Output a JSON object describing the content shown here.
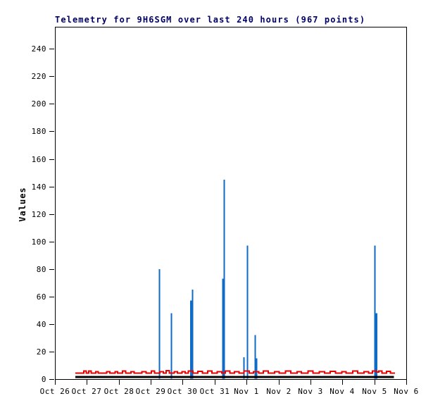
{
  "title": "Telemetry for 9H6SGM over last 240 hours (967 points)",
  "colors": {
    "background": "#ffffff",
    "title_text": "#000066",
    "frame": "#000000",
    "spike_blue": "#0f6bc5",
    "baseline_red": "#e60000",
    "baseline_black": "#000000"
  },
  "chart_data": {
    "type": "line",
    "title": "Telemetry for 9H6SGM over last 240 hours (967 points)",
    "xlabel": "",
    "ylabel": "Values",
    "grid": false,
    "legend": "none",
    "x_unit": "days since Oct 26",
    "x_axis": {
      "range": [
        0,
        11
      ],
      "tick_labels": [
        "Oct 26",
        "Oct 27",
        "Oct 28",
        "Oct 29",
        "Oct 30",
        "Oct 31",
        "Nov 1",
        "Nov 2",
        "Nov 3",
        "Nov 4",
        "Nov 5",
        "Nov 6"
      ],
      "tick_days": [
        0,
        1,
        2,
        3,
        4,
        5,
        6,
        7,
        8,
        9,
        10,
        11
      ]
    },
    "y_axis": {
      "ticks": [
        0,
        20,
        40,
        60,
        80,
        100,
        120,
        140,
        160,
        180,
        200,
        220,
        240
      ],
      "max": 256
    },
    "series": [
      {
        "name": "blue-spikes",
        "type": "impulse",
        "color": "#0f6bc5",
        "points_day_value_width": [
          [
            3.27,
            80,
            2
          ],
          [
            3.65,
            48,
            2
          ],
          [
            4.27,
            57,
            3
          ],
          [
            4.31,
            65,
            2
          ],
          [
            5.27,
            73,
            3
          ],
          [
            5.3,
            145,
            2
          ],
          [
            5.92,
            16,
            2
          ],
          [
            6.03,
            97,
            2
          ],
          [
            6.27,
            32,
            2
          ],
          [
            6.3,
            15,
            3
          ],
          [
            10.02,
            97,
            2
          ],
          [
            10.05,
            48,
            4
          ]
        ]
      },
      {
        "name": "red-baseline",
        "type": "step",
        "color": "#e60000",
        "stroke_width": 2,
        "points_day_value": [
          [
            0.64,
            4.4
          ],
          [
            0.8,
            4.4
          ],
          [
            0.9,
            6.0
          ],
          [
            0.98,
            4.4
          ],
          [
            1.06,
            6.0
          ],
          [
            1.14,
            4.4
          ],
          [
            1.28,
            5.4
          ],
          [
            1.36,
            4.4
          ],
          [
            1.52,
            4.4
          ],
          [
            1.62,
            5.4
          ],
          [
            1.72,
            4.4
          ],
          [
            1.88,
            5.4
          ],
          [
            1.96,
            4.4
          ],
          [
            2.12,
            6.0
          ],
          [
            2.22,
            4.4
          ],
          [
            2.38,
            5.4
          ],
          [
            2.48,
            4.4
          ],
          [
            2.64,
            4.4
          ],
          [
            2.72,
            5.4
          ],
          [
            2.86,
            4.4
          ],
          [
            3.02,
            5.8
          ],
          [
            3.12,
            4.4
          ],
          [
            3.28,
            5.4
          ],
          [
            3.4,
            4.4
          ],
          [
            3.48,
            6.2
          ],
          [
            3.58,
            4.4
          ],
          [
            3.74,
            5.4
          ],
          [
            3.84,
            4.4
          ],
          [
            3.98,
            5.4
          ],
          [
            4.08,
            4.4
          ],
          [
            4.18,
            6.0
          ],
          [
            4.32,
            4.4
          ],
          [
            4.48,
            5.6
          ],
          [
            4.62,
            4.4
          ],
          [
            4.78,
            6.0
          ],
          [
            4.92,
            4.4
          ],
          [
            5.08,
            5.4
          ],
          [
            5.22,
            4.4
          ],
          [
            5.34,
            6.0
          ],
          [
            5.48,
            4.4
          ],
          [
            5.62,
            5.4
          ],
          [
            5.76,
            4.4
          ],
          [
            5.92,
            5.8
          ],
          [
            6.08,
            4.4
          ],
          [
            6.22,
            5.4
          ],
          [
            6.38,
            4.4
          ],
          [
            6.52,
            6.0
          ],
          [
            6.68,
            4.4
          ],
          [
            6.88,
            5.4
          ],
          [
            7.02,
            4.4
          ],
          [
            7.22,
            5.8
          ],
          [
            7.38,
            4.4
          ],
          [
            7.58,
            5.4
          ],
          [
            7.72,
            4.4
          ],
          [
            7.92,
            6.0
          ],
          [
            8.08,
            4.4
          ],
          [
            8.28,
            5.4
          ],
          [
            8.44,
            4.4
          ],
          [
            8.62,
            5.6
          ],
          [
            8.78,
            4.4
          ],
          [
            8.98,
            5.4
          ],
          [
            9.12,
            4.4
          ],
          [
            9.32,
            5.8
          ],
          [
            9.48,
            4.4
          ],
          [
            9.68,
            5.4
          ],
          [
            9.82,
            4.4
          ],
          [
            9.94,
            6.0
          ],
          [
            10.06,
            5.0
          ],
          [
            10.14,
            5.8
          ],
          [
            10.24,
            4.4
          ],
          [
            10.38,
            5.6
          ],
          [
            10.5,
            4.4
          ],
          [
            10.63,
            4.8
          ]
        ]
      },
      {
        "name": "black-baseline",
        "type": "line",
        "color": "#000000",
        "stroke_width": 3,
        "points_day_value": [
          [
            0.64,
            1.6
          ],
          [
            10.61,
            1.6
          ]
        ]
      }
    ]
  }
}
